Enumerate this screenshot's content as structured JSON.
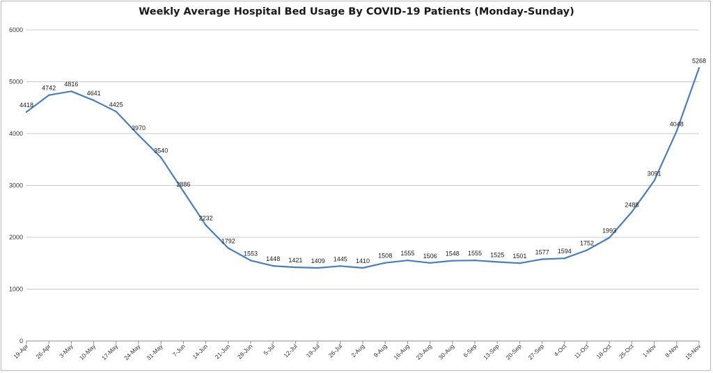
{
  "chart_data": {
    "type": "line",
    "title": "Weekly Average Hospital Bed Usage By COVID-19 Patients (Monday-Sunday)",
    "xlabel": "",
    "ylabel": "",
    "ylim": [
      0,
      6000
    ],
    "yticks": [
      0,
      1000,
      2000,
      3000,
      4000,
      5000,
      6000
    ],
    "grid": true,
    "legend": "none",
    "line_color": "#4a7ebb",
    "categories": [
      "19-Apr",
      "26-Apr",
      "3-May",
      "10-May",
      "17-May",
      "24-May",
      "31-May",
      "7-Jun",
      "14-Jun",
      "21-Jun",
      "28-Jun",
      "5-Jul",
      "12-Jul",
      "19-Jul",
      "26-Jul",
      "2-Aug",
      "9-Aug",
      "16-Aug",
      "23-Aug",
      "30-Aug",
      "6-Sep",
      "13-Sep",
      "20-Sep",
      "27-Sep",
      "4-Oct",
      "11-Oct",
      "18-Oct",
      "25-Oct",
      "1-Nov",
      "8-Nov",
      "15-Nov"
    ],
    "series": [
      {
        "values": [
          4418,
          4742,
          4816,
          4641,
          4425,
          3970,
          3540,
          2886,
          2232,
          1792,
          1553,
          1448,
          1421,
          1409,
          1445,
          1410,
          1508,
          1555,
          1506,
          1548,
          1555,
          1525,
          1501,
          1577,
          1594,
          1752,
          1993,
          2488,
          3091,
          4048,
          5268
        ]
      }
    ]
  }
}
